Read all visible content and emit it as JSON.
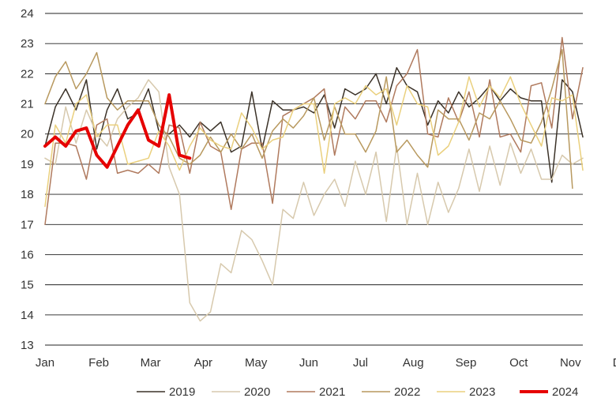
{
  "chart_data": {
    "type": "line",
    "title": "",
    "xlabel": "",
    "ylabel": "",
    "ylim": [
      13,
      24
    ],
    "xlim": [
      0,
      52
    ],
    "grid": "horizontal",
    "legend_position": "bottom-right",
    "y_ticks": [
      "13",
      "14",
      "15",
      "16",
      "17",
      "18",
      "19",
      "20",
      "21",
      "22",
      "23",
      "24"
    ],
    "x_ticks": [
      {
        "label": "Jan",
        "week": 0
      },
      {
        "label": "Feb",
        "week": 5.2
      },
      {
        "label": "Mar",
        "week": 10.2
      },
      {
        "label": "Apr",
        "week": 15.3
      },
      {
        "label": "May",
        "week": 20.4
      },
      {
        "label": "Jun",
        "week": 25.5
      },
      {
        "label": "Jul",
        "week": 30.5
      },
      {
        "label": "Aug",
        "week": 35.6
      },
      {
        "label": "Sep",
        "week": 40.7
      },
      {
        "label": "Oct",
        "week": 45.8
      },
      {
        "label": "Nov",
        "week": 50.8
      },
      {
        "label": "Dec",
        "week": 55.9
      }
    ],
    "series": [
      {
        "name": "2019",
        "color": "#3b3228",
        "width": 1.5,
        "start_week": 0,
        "values": [
          19.6,
          20.9,
          21.5,
          20.8,
          21.8,
          19.5,
          20.8,
          21.5,
          20.5,
          20.7,
          21.5,
          20.1,
          20.0,
          20.3,
          19.9,
          20.4,
          20.1,
          20.4,
          19.4,
          19.6,
          21.4,
          19.5,
          21.1,
          20.8,
          20.8,
          20.9,
          20.7,
          21.3,
          20.2,
          21.5,
          21.3,
          21.5,
          22.0,
          21.0,
          22.2,
          21.6,
          21.4,
          20.3,
          21.1,
          20.7,
          21.4,
          20.9,
          21.2,
          21.6,
          21.1,
          21.5,
          21.2,
          21.1,
          21.1,
          18.4,
          21.8,
          21.4,
          19.9
        ]
      },
      {
        "name": "2020",
        "color": "#d7c9ad",
        "width": 1.5,
        "start_week": 0,
        "values": [
          19.2,
          19.0,
          20.9,
          19.7,
          20.8,
          20.0,
          19.6,
          20.5,
          20.9,
          21.2,
          21.8,
          21.4,
          18.9,
          18.0,
          14.4,
          13.8,
          14.1,
          15.7,
          15.4,
          16.8,
          16.5,
          15.8,
          15.0,
          17.5,
          17.2,
          18.4,
          17.3,
          18.0,
          18.5,
          17.6,
          19.1,
          18.0,
          19.4,
          17.1,
          19.6,
          17.0,
          18.7,
          17.0,
          18.4,
          17.4,
          18.2,
          19.5,
          18.1,
          19.6,
          18.3,
          19.7,
          18.7,
          19.5,
          18.5,
          18.5,
          19.3,
          19.0,
          19.2
        ]
      },
      {
        "name": "2021",
        "color": "#b07a5e",
        "width": 1.5,
        "start_week": 0,
        "values": [
          17.0,
          19.7,
          19.7,
          19.6,
          18.5,
          20.3,
          20.5,
          18.7,
          18.8,
          18.7,
          19.0,
          18.7,
          20.3,
          20.2,
          18.7,
          20.4,
          19.6,
          19.4,
          17.5,
          19.5,
          19.7,
          19.7,
          17.7,
          20.6,
          20.8,
          21.0,
          21.2,
          21.5,
          19.3,
          20.9,
          20.5,
          21.1,
          21.1,
          20.4,
          21.6,
          22.0,
          22.8,
          20.0,
          19.9,
          21.2,
          20.4,
          21.4,
          19.9,
          21.8,
          19.9,
          20.0,
          19.4,
          21.6,
          21.7,
          20.2,
          23.2,
          20.5,
          22.2
        ]
      },
      {
        "name": "2022",
        "color": "#b8995f",
        "width": 1.5,
        "start_week": 0,
        "values": [
          21.0,
          21.9,
          22.4,
          21.5,
          22.0,
          22.7,
          21.2,
          20.8,
          21.1,
          21.1,
          21.1,
          20.3,
          19.9,
          19.2,
          19.0,
          19.3,
          19.9,
          19.4,
          20.0,
          19.5,
          20.0,
          19.2,
          20.1,
          20.5,
          20.2,
          20.6,
          21.2,
          19.8,
          20.9,
          20.0,
          20.0,
          19.4,
          20.1,
          21.9,
          19.4,
          19.8,
          19.3,
          18.9,
          20.8,
          20.5,
          20.5,
          19.8,
          20.7,
          20.5,
          21.1,
          20.5,
          19.8,
          19.7,
          20.4,
          21.5,
          22.8,
          18.2
        ]
      },
      {
        "name": "2023",
        "color": "#ead07e",
        "width": 1.5,
        "start_week": 0,
        "values": [
          17.6,
          20.3,
          19.7,
          21.0,
          21.3,
          19.9,
          20.3,
          20.3,
          19.0,
          19.1,
          19.2,
          20.1,
          19.6,
          18.8,
          19.6,
          20.2,
          19.8,
          19.6,
          19.5,
          20.7,
          20.2,
          19.5,
          19.8,
          19.9,
          20.8,
          21.0,
          21.0,
          18.7,
          21.0,
          21.2,
          21.0,
          21.6,
          21.3,
          21.5,
          20.3,
          21.6,
          21.0,
          20.9,
          19.3,
          19.6,
          20.4,
          21.9,
          20.9,
          21.6,
          21.2,
          21.9,
          21.0,
          20.3,
          19.6,
          21.2,
          21.1,
          21.3,
          18.8
        ]
      },
      {
        "name": "2024",
        "color": "#e60000",
        "width": 4,
        "start_week": 0,
        "values": [
          19.6,
          19.9,
          19.6,
          20.1,
          20.2,
          19.3,
          18.9,
          19.6,
          20.3,
          20.8,
          19.8,
          19.6,
          21.3,
          19.3,
          19.2
        ]
      }
    ]
  }
}
